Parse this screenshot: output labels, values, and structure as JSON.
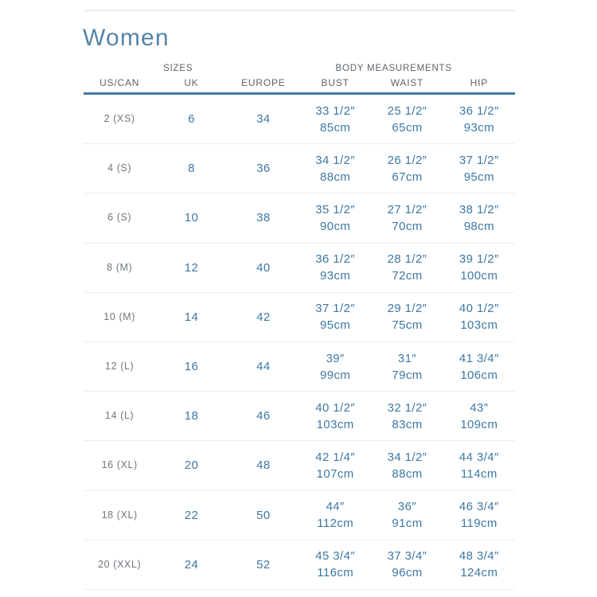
{
  "page": {
    "title": "Women"
  },
  "table": {
    "group_headers": {
      "sizes": "SIZES",
      "body_measurements": "BODY MEASUREMENTS"
    },
    "columns": [
      "US/CAN",
      "UK",
      "EUROPE",
      "BUST",
      "WAIST",
      "HIP"
    ],
    "rows": [
      {
        "us_can": "2 (XS)",
        "uk": "6",
        "europe": "34",
        "bust": [
          "33 1/2″",
          "85cm"
        ],
        "waist": [
          "25 1/2″",
          "65cm"
        ],
        "hip": [
          "36 1/2″",
          "93cm"
        ]
      },
      {
        "us_can": "4 (S)",
        "uk": "8",
        "europe": "36",
        "bust": [
          "34 1/2″",
          "88cm"
        ],
        "waist": [
          "26 1/2″",
          "67cm"
        ],
        "hip": [
          "37 1/2″",
          "95cm"
        ]
      },
      {
        "us_can": "6 (S)",
        "uk": "10",
        "europe": "38",
        "bust": [
          "35 1/2″",
          "90cm"
        ],
        "waist": [
          "27 1/2″",
          "70cm"
        ],
        "hip": [
          "38 1/2″",
          "98cm"
        ]
      },
      {
        "us_can": "8 (M)",
        "uk": "12",
        "europe": "40",
        "bust": [
          "36 1/2″",
          "93cm"
        ],
        "waist": [
          "28 1/2″",
          "72cm"
        ],
        "hip": [
          "39 1/2″",
          "100cm"
        ]
      },
      {
        "us_can": "10 (M)",
        "uk": "14",
        "europe": "42",
        "bust": [
          "37 1/2″",
          "95cm"
        ],
        "waist": [
          "29 1/2″",
          "75cm"
        ],
        "hip": [
          "40 1/2″",
          "103cm"
        ]
      },
      {
        "us_can": "12 (L)",
        "uk": "16",
        "europe": "44",
        "bust": [
          "39″",
          "99cm"
        ],
        "waist": [
          "31″",
          "79cm"
        ],
        "hip": [
          "41 3/4″",
          "106cm"
        ]
      },
      {
        "us_can": "14 (L)",
        "uk": "18",
        "europe": "46",
        "bust": [
          "40 1/2″",
          "103cm"
        ],
        "waist": [
          "32 1/2″",
          "83cm"
        ],
        "hip": [
          "43″",
          "109cm"
        ]
      },
      {
        "us_can": "16 (XL)",
        "uk": "20",
        "europe": "48",
        "bust": [
          "42 1/4″",
          "107cm"
        ],
        "waist": [
          "34 1/2″",
          "88cm"
        ],
        "hip": [
          "44 3/4″",
          "114cm"
        ]
      },
      {
        "us_can": "18 (XL)",
        "uk": "22",
        "europe": "50",
        "bust": [
          "44″",
          "112cm"
        ],
        "waist": [
          "36″",
          "91cm"
        ],
        "hip": [
          "46 3/4″",
          "119cm"
        ]
      },
      {
        "us_can": "20 (XXL)",
        "uk": "24",
        "europe": "52",
        "bust": [
          "45 3/4″",
          "116cm"
        ],
        "waist": [
          "37 3/4″",
          "96cm"
        ],
        "hip": [
          "48 3/4″",
          "124cm"
        ]
      }
    ]
  },
  "colors": {
    "title_blue": "#5584a8",
    "data_blue": "#3e78a3",
    "header_gray": "#5d6369",
    "label_gray": "#70767f",
    "header_rule_blue": "#437aa4",
    "row_divider": "#ededee",
    "top_rule": "#dedede",
    "background": "#ffffff"
  }
}
